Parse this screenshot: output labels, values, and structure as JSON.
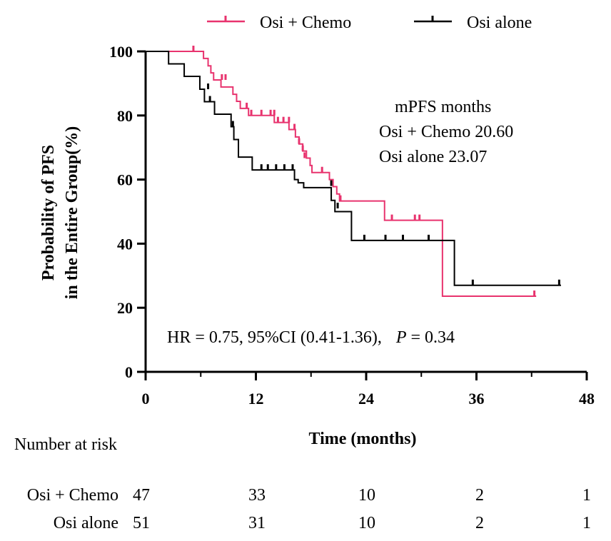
{
  "chart_data": {
    "type": "line",
    "subtype": "kaplan-meier",
    "title": "",
    "xlabel": "Time (months)",
    "ylabel_lines": [
      "Probability of PFS",
      "in the Entire Group(%)"
    ],
    "xlim": [
      0,
      48
    ],
    "ylim": [
      0,
      100
    ],
    "xticks": [
      0,
      12,
      24,
      36,
      48
    ],
    "yticks": [
      0,
      20,
      40,
      60,
      80,
      100
    ],
    "x_tick_labels": [
      "0",
      "12",
      "24",
      "36",
      "48"
    ],
    "y_tick_labels": [
      "0",
      "20",
      "40",
      "60",
      "80",
      "100"
    ],
    "legend": {
      "position": "top",
      "entries": [
        {
          "name": "Osi + Chemo",
          "color": "#e8336e"
        },
        {
          "name": "Osi alone",
          "color": "#000000"
        }
      ]
    },
    "series": [
      {
        "name": "Osi + Chemo",
        "color": "#e8336e",
        "steps": [
          [
            0,
            100
          ],
          [
            6.3,
            97.8
          ],
          [
            6.8,
            95.5
          ],
          [
            7.1,
            93.3
          ],
          [
            7.4,
            91.1
          ],
          [
            8.2,
            88.9
          ],
          [
            9.5,
            86.6
          ],
          [
            9.9,
            84.4
          ],
          [
            10.3,
            82.2
          ],
          [
            11.2,
            80.0
          ],
          [
            14.0,
            77.8
          ],
          [
            15.6,
            75.6
          ],
          [
            16.3,
            73.3
          ],
          [
            16.7,
            71.1
          ],
          [
            17.1,
            68.9
          ],
          [
            17.5,
            66.7
          ],
          [
            17.9,
            64.4
          ],
          [
            18.1,
            62.2
          ],
          [
            20.0,
            60.0
          ],
          [
            20.4,
            57.8
          ],
          [
            20.8,
            55.5
          ],
          [
            21.1,
            53.3
          ],
          [
            26.0,
            47.3
          ],
          [
            32.3,
            23.6
          ],
          [
            42.5,
            23.6
          ]
        ],
        "censored": [
          [
            5.2,
            100
          ],
          [
            8.3,
            91.1
          ],
          [
            8.7,
            91.1
          ],
          [
            11.0,
            82.2
          ],
          [
            11.5,
            80.0
          ],
          [
            12.6,
            80.0
          ],
          [
            13.6,
            80.0
          ],
          [
            14.0,
            80.0
          ],
          [
            14.4,
            77.8
          ],
          [
            15.0,
            77.8
          ],
          [
            15.6,
            77.8
          ],
          [
            16.2,
            75.6
          ],
          [
            16.7,
            71.1
          ],
          [
            17.1,
            68.9
          ],
          [
            17.3,
            66.7
          ],
          [
            19.2,
            62.2
          ],
          [
            21.2,
            53.3
          ],
          [
            26.8,
            47.3
          ],
          [
            29.3,
            47.3
          ],
          [
            29.8,
            47.3
          ],
          [
            42.3,
            23.6
          ]
        ]
      },
      {
        "name": "Osi alone",
        "color": "#000000",
        "steps": [
          [
            0,
            100
          ],
          [
            2.5,
            96.1
          ],
          [
            4.2,
            92.2
          ],
          [
            5.9,
            88.2
          ],
          [
            6.4,
            84.3
          ],
          [
            7.5,
            80.4
          ],
          [
            9.3,
            76.5
          ],
          [
            9.6,
            72.5
          ],
          [
            10.1,
            67.0
          ],
          [
            11.6,
            63.0
          ],
          [
            16.2,
            60.0
          ],
          [
            16.6,
            59.0
          ],
          [
            17.2,
            57.5
          ],
          [
            20.2,
            53.5
          ],
          [
            20.6,
            50.0
          ],
          [
            22.4,
            41.0
          ],
          [
            33.6,
            27.0
          ],
          [
            45.2,
            27.0
          ]
        ],
        "censored": [
          [
            6.8,
            88.2
          ],
          [
            7.0,
            84.3
          ],
          [
            9.5,
            76.5
          ],
          [
            12.6,
            63.0
          ],
          [
            13.3,
            63.0
          ],
          [
            14.2,
            63.0
          ],
          [
            15.1,
            63.0
          ],
          [
            16.0,
            63.0
          ],
          [
            20.2,
            58.0
          ],
          [
            20.9,
            51.0
          ],
          [
            23.8,
            41.0
          ],
          [
            26.1,
            41.0
          ],
          [
            28.0,
            41.0
          ],
          [
            30.8,
            41.0
          ],
          [
            35.6,
            27.0
          ],
          [
            45.0,
            27.0
          ]
        ]
      }
    ],
    "annotations": {
      "mpfs_title": "mPFS  months",
      "mpfs_rows": [
        "Osi + Chemo  20.60",
        "Osi alone  23.07"
      ],
      "hr_prefix": "HR = 0.75, 95%CI (0.41-1.36),",
      "p_symbol": "P",
      "p_value": "= 0.34"
    },
    "risk_table": {
      "title": "Number at risk",
      "rows": [
        {
          "label": "Osi + Chemo",
          "values": [
            "47",
            "33",
            "10",
            "2",
            "1"
          ]
        },
        {
          "label": "Osi alone",
          "values": [
            "51",
            "31",
            "10",
            "2",
            "1"
          ]
        }
      ]
    }
  }
}
